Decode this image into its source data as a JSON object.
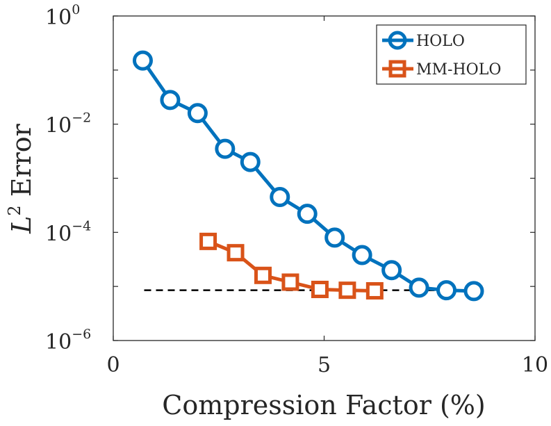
{
  "chart_data": {
    "type": "line",
    "yscale": "log",
    "xlabel": "Compression Factor (%)",
    "ylabel_prefix": "L",
    "ylabel_exponent": "2",
    "ylabel_suffix": " Error",
    "xlim": [
      0,
      10
    ],
    "ylim": [
      1e-06,
      1
    ],
    "xticks": [
      0,
      5,
      10
    ],
    "xtick_labels": [
      "0",
      "5",
      "10"
    ],
    "yticks": [
      1e-06,
      0.0001,
      0.01,
      1
    ],
    "ytick_bases": [
      "10",
      "10",
      "10",
      "10"
    ],
    "ytick_exponents": [
      "−6",
      "−4",
      "−2",
      "0"
    ],
    "legend_position": "top-right",
    "series": [
      {
        "name": "HOLO",
        "color": "#0072BD",
        "marker": "circle",
        "x": [
          0.7,
          1.35,
          2.0,
          2.65,
          3.25,
          3.95,
          4.6,
          5.25,
          5.9,
          6.6,
          7.25,
          7.9,
          8.55
        ],
        "y": [
          0.15,
          0.028,
          0.016,
          0.0035,
          0.002,
          0.00045,
          0.00022,
          8e-05,
          3.8e-05,
          2e-05,
          9.5e-06,
          8.5e-06,
          8.2e-06
        ]
      },
      {
        "name": "MM-HOLO",
        "color": "#D95319",
        "marker": "square",
        "x": [
          2.25,
          2.9,
          3.55,
          4.2,
          4.9,
          5.55,
          6.2
        ],
        "y": [
          6.8e-05,
          4.2e-05,
          1.6e-05,
          1.2e-05,
          8.8e-06,
          8.5e-06,
          8.3e-06
        ]
      }
    ],
    "reference_line": {
      "style": "dashed",
      "color": "#000000",
      "x": [
        0.7,
        8.55
      ],
      "y": 8.5e-06
    }
  }
}
